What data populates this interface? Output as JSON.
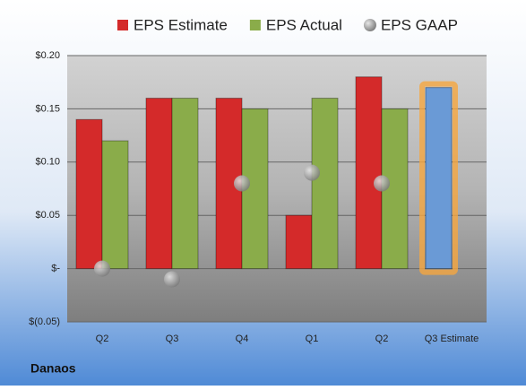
{
  "chart_data": {
    "type": "bar",
    "footer": "Danaos",
    "categories": [
      "Q2",
      "Q3",
      "Q4",
      "Q1",
      "Q2",
      "Q3 Estimate"
    ],
    "series": [
      {
        "name": "EPS Estimate",
        "color": "#d42a2a",
        "values": [
          0.14,
          0.16,
          0.16,
          0.05,
          0.18,
          0.17
        ]
      },
      {
        "name": "EPS Actual",
        "color": "#8aac4a",
        "values": [
          0.12,
          0.16,
          0.15,
          0.16,
          0.15,
          null
        ]
      },
      {
        "name": "EPS GAAP",
        "color": "#a8a8a8",
        "type": "scatter",
        "values": [
          0,
          -0.01,
          0.08,
          0.09,
          0.08,
          null
        ]
      }
    ],
    "highlight_color": "#6a9ad6",
    "ylim": [
      -0.05,
      0.2
    ],
    "yticks": [
      {
        "value": -0.05,
        "label": "$(0.05)"
      },
      {
        "value": 0,
        "label": "$-"
      },
      {
        "value": 0.05,
        "label": "$0.05"
      },
      {
        "value": 0.1,
        "label": "$0.10"
      },
      {
        "value": 0.15,
        "label": "$0.15"
      },
      {
        "value": 0.2,
        "label": "$0.20"
      }
    ],
    "grid": true,
    "legend": "top"
  }
}
